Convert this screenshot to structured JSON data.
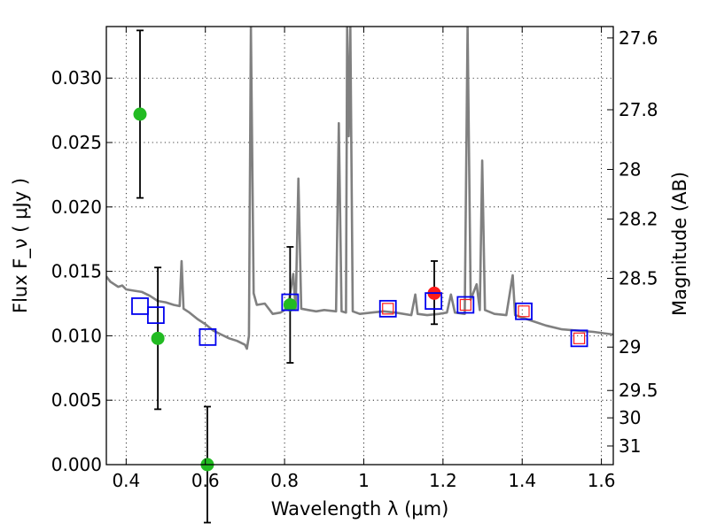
{
  "chart_data": {
    "type": "scatter",
    "xlabel": "Wavelength  λ (μm)",
    "ylabel": "Flux  F_ν  ( μJy )",
    "y2label": "Magnitude (AB)",
    "xlim": [
      0.35,
      1.63
    ],
    "ylim": [
      0.0,
      0.034
    ],
    "grid": true,
    "x_ticks": [
      0.4,
      0.6,
      0.8,
      1.0,
      1.2,
      1.4,
      1.6
    ],
    "x_tick_labels": [
      "0.4",
      "0.6",
      "0.8",
      "1",
      "1.2",
      "1.4",
      "1.6"
    ],
    "y_ticks": [
      0.0,
      0.005,
      0.01,
      0.015,
      0.02,
      0.025,
      0.03
    ],
    "y_tick_labels": [
      "0.000",
      "0.005",
      "0.010",
      "0.015",
      "0.020",
      "0.025",
      "0.030"
    ],
    "mag_ticks": [
      27.6,
      27.8,
      28,
      28.2,
      28.5,
      29,
      29.5,
      30,
      31
    ],
    "mag_tick_labels": [
      "27.6",
      "27.8",
      "28",
      "28.2",
      "28.5",
      "29",
      "29.5",
      "30",
      "31"
    ],
    "series": [
      {
        "marker": "circle",
        "color": "#22bb22",
        "points": [
          {
            "x": 0.435,
            "y": 0.0272,
            "err_low": 0.0065,
            "err_high": 0.0065
          },
          {
            "x": 0.48,
            "y": 0.0098,
            "err_low": 0.0055,
            "err_high": 0.0055
          },
          {
            "x": 0.605,
            "y": 0.0,
            "err_low": 0.0045,
            "err_high": 0.0045
          },
          {
            "x": 0.814,
            "y": 0.0124,
            "err_low": 0.0045,
            "err_high": 0.0045
          }
        ]
      },
      {
        "marker": "circle",
        "color": "#ff1a1a",
        "points": [
          {
            "x": 1.178,
            "y": 0.0133,
            "err_low": 0.0024,
            "err_high": 0.0025
          }
        ]
      },
      {
        "marker": "open-square-large",
        "color": "#0000ee",
        "points": [
          {
            "x": 0.435,
            "y": 0.0123
          },
          {
            "x": 0.475,
            "y": 0.0116
          },
          {
            "x": 0.606,
            "y": 0.0099
          },
          {
            "x": 0.814,
            "y": 0.0126
          },
          {
            "x": 1.061,
            "y": 0.0121
          },
          {
            "x": 1.176,
            "y": 0.0127
          },
          {
            "x": 1.257,
            "y": 0.0124
          },
          {
            "x": 1.404,
            "y": 0.0119
          },
          {
            "x": 1.544,
            "y": 0.0098
          }
        ]
      },
      {
        "marker": "open-square-small",
        "color": "#ff1a1a",
        "points": [
          {
            "x": 1.061,
            "y": 0.0121
          },
          {
            "x": 1.257,
            "y": 0.0124
          },
          {
            "x": 1.404,
            "y": 0.0119
          },
          {
            "x": 1.544,
            "y": 0.0098
          }
        ]
      },
      {
        "marker": "line",
        "color": "#808080",
        "points": [
          {
            "x": 0.35,
            "y": 0.0146
          },
          {
            "x": 0.36,
            "y": 0.0142
          },
          {
            "x": 0.37,
            "y": 0.014
          },
          {
            "x": 0.38,
            "y": 0.0138
          },
          {
            "x": 0.39,
            "y": 0.0139
          },
          {
            "x": 0.4,
            "y": 0.0136
          },
          {
            "x": 0.42,
            "y": 0.0135
          },
          {
            "x": 0.44,
            "y": 0.0134
          },
          {
            "x": 0.46,
            "y": 0.0131
          },
          {
            "x": 0.48,
            "y": 0.0127
          },
          {
            "x": 0.5,
            "y": 0.0126
          },
          {
            "x": 0.52,
            "y": 0.0124
          },
          {
            "x": 0.535,
            "y": 0.0123
          },
          {
            "x": 0.54,
            "y": 0.0158
          },
          {
            "x": 0.545,
            "y": 0.0121
          },
          {
            "x": 0.56,
            "y": 0.0118
          },
          {
            "x": 0.58,
            "y": 0.0113
          },
          {
            "x": 0.6,
            "y": 0.0109
          },
          {
            "x": 0.62,
            "y": 0.0104
          },
          {
            "x": 0.64,
            "y": 0.0101
          },
          {
            "x": 0.66,
            "y": 0.0098
          },
          {
            "x": 0.68,
            "y": 0.0096
          },
          {
            "x": 0.7,
            "y": 0.0093
          },
          {
            "x": 0.705,
            "y": 0.009
          },
          {
            "x": 0.71,
            "y": 0.01
          },
          {
            "x": 0.715,
            "y": 0.034
          },
          {
            "x": 0.722,
            "y": 0.0133
          },
          {
            "x": 0.73,
            "y": 0.0124
          },
          {
            "x": 0.75,
            "y": 0.0125
          },
          {
            "x": 0.77,
            "y": 0.0117
          },
          {
            "x": 0.79,
            "y": 0.0118
          },
          {
            "x": 0.8,
            "y": 0.012
          },
          {
            "x": 0.81,
            "y": 0.0125
          },
          {
            "x": 0.822,
            "y": 0.0148
          },
          {
            "x": 0.828,
            "y": 0.012
          },
          {
            "x": 0.835,
            "y": 0.0222
          },
          {
            "x": 0.842,
            "y": 0.0121
          },
          {
            "x": 0.86,
            "y": 0.012
          },
          {
            "x": 0.88,
            "y": 0.0119
          },
          {
            "x": 0.9,
            "y": 0.012
          },
          {
            "x": 0.93,
            "y": 0.0119
          },
          {
            "x": 0.937,
            "y": 0.0265
          },
          {
            "x": 0.944,
            "y": 0.0119
          },
          {
            "x": 0.955,
            "y": 0.0118
          },
          {
            "x": 0.958,
            "y": 0.034
          },
          {
            "x": 0.962,
            "y": 0.0255
          },
          {
            "x": 0.966,
            "y": 0.034
          },
          {
            "x": 0.972,
            "y": 0.0119
          },
          {
            "x": 0.99,
            "y": 0.0117
          },
          {
            "x": 1.02,
            "y": 0.0118
          },
          {
            "x": 1.05,
            "y": 0.0119
          },
          {
            "x": 1.08,
            "y": 0.0118
          },
          {
            "x": 1.12,
            "y": 0.0116
          },
          {
            "x": 1.13,
            "y": 0.0132
          },
          {
            "x": 1.136,
            "y": 0.0117
          },
          {
            "x": 1.16,
            "y": 0.0116
          },
          {
            "x": 1.19,
            "y": 0.0117
          },
          {
            "x": 1.21,
            "y": 0.0118
          },
          {
            "x": 1.22,
            "y": 0.0132
          },
          {
            "x": 1.23,
            "y": 0.0118
          },
          {
            "x": 1.255,
            "y": 0.0117
          },
          {
            "x": 1.262,
            "y": 0.034
          },
          {
            "x": 1.27,
            "y": 0.0128
          },
          {
            "x": 1.285,
            "y": 0.014
          },
          {
            "x": 1.293,
            "y": 0.012
          },
          {
            "x": 1.299,
            "y": 0.0236
          },
          {
            "x": 1.306,
            "y": 0.012
          },
          {
            "x": 1.33,
            "y": 0.0117
          },
          {
            "x": 1.36,
            "y": 0.0116
          },
          {
            "x": 1.376,
            "y": 0.0147
          },
          {
            "x": 1.382,
            "y": 0.0116
          },
          {
            "x": 1.42,
            "y": 0.0112
          },
          {
            "x": 1.46,
            "y": 0.0108
          },
          {
            "x": 1.5,
            "y": 0.0105
          },
          {
            "x": 1.54,
            "y": 0.0104
          },
          {
            "x": 1.58,
            "y": 0.0103
          },
          {
            "x": 1.63,
            "y": 0.0101
          }
        ]
      }
    ]
  }
}
